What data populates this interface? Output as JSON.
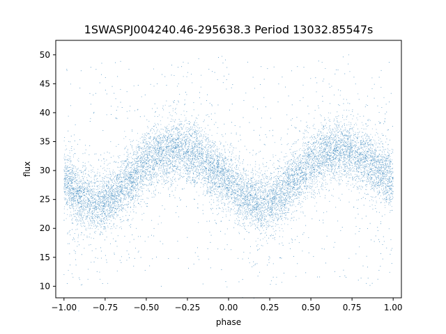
{
  "chart_data": {
    "type": "scatter",
    "title": "1SWASPJ004240.46-295638.3 Period 13032.85547s",
    "xlabel": "phase",
    "ylabel": "flux",
    "xlim": [
      -1.05,
      1.05
    ],
    "ylim": [
      8.0,
      52.5
    ],
    "x_ticks": [
      -1.0,
      -0.75,
      -0.5,
      -0.25,
      0.0,
      0.25,
      0.5,
      0.75,
      1.0
    ],
    "x_tick_labels": [
      "−1.00",
      "−0.75",
      "−0.50",
      "−0.25",
      "0.00",
      "0.25",
      "0.50",
      "0.75",
      "1.00"
    ],
    "y_ticks": [
      10,
      15,
      20,
      25,
      30,
      35,
      40,
      45,
      50
    ],
    "y_tick_labels": [
      "10",
      "15",
      "20",
      "25",
      "30",
      "35",
      "40",
      "45",
      "50"
    ],
    "grid": false,
    "legend": "none",
    "point_color": "#1f77b4",
    "series": [
      {
        "phase_range": [
          -1.0,
          1.0
        ],
        "flux_trend": {
          "phase": [
            -1.0,
            -0.9,
            -0.8,
            -0.7,
            -0.6,
            -0.5,
            -0.4,
            -0.3,
            -0.2,
            -0.1,
            0.0,
            0.1,
            0.2,
            0.3,
            0.4,
            0.5,
            0.6,
            0.7,
            0.8,
            0.9,
            1.0
          ],
          "flux": [
            28.3,
            25.3,
            24.2,
            25.5,
            28.5,
            31.3,
            33.0,
            33.5,
            32.5,
            30.3,
            28.3,
            25.3,
            24.2,
            25.5,
            28.5,
            31.3,
            33.0,
            33.5,
            32.5,
            30.3,
            28.3
          ]
        },
        "scatter_width": 2.5,
        "outlier_range": [
          10,
          50
        ]
      }
    ]
  }
}
